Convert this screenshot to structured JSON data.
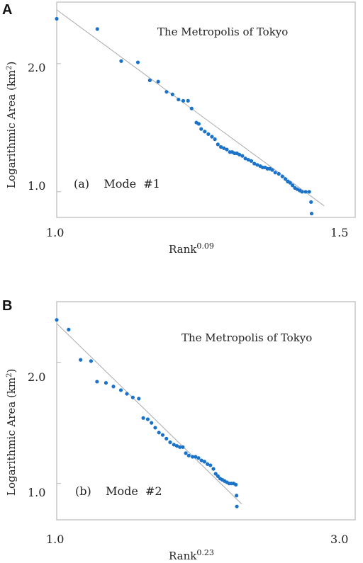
{
  "chart_data": [
    {
      "panel": "A",
      "type": "scatter",
      "title": "The Metropolis of Tokyo",
      "annotation": "(a)    Mode  #1",
      "xlabel": "Rank",
      "xlabel_exp": "0.09",
      "ylabel": "Logarithmic Area (km",
      "ylabel_sup": "2",
      "ylabel_end": ")",
      "xlim": [
        1.0,
        1.5
      ],
      "ylim": [
        0.8,
        2.48
      ],
      "xticks": [
        "1.0",
        "1.5"
      ],
      "xtick_values": [
        1.0,
        1.5
      ],
      "yticks": [
        "1.0",
        "2.0"
      ],
      "ytick_values": [
        1.0,
        2.0
      ],
      "point_color": "#1a73c8",
      "fit_line": [
        [
          1.0,
          2.42
        ],
        [
          1.448,
          0.89
        ]
      ],
      "x": [
        1.0,
        1.068,
        1.108,
        1.136,
        1.156,
        1.17,
        1.184,
        1.194,
        1.204,
        1.212,
        1.22,
        1.226,
        1.234,
        1.238,
        1.242,
        1.248,
        1.254,
        1.26,
        1.265,
        1.27,
        1.275,
        1.28,
        1.285,
        1.29,
        1.294,
        1.298,
        1.302,
        1.306,
        1.311,
        1.316,
        1.321,
        1.326,
        1.331,
        1.336,
        1.341,
        1.345,
        1.349,
        1.353,
        1.357,
        1.361,
        1.366,
        1.372,
        1.378,
        1.383,
        1.387,
        1.391,
        1.395,
        1.399,
        1.403,
        1.407,
        1.411,
        1.417,
        1.423,
        1.426,
        1.427
      ],
      "y": [
        2.35,
        2.27,
        2.02,
        2.01,
        1.87,
        1.86,
        1.78,
        1.76,
        1.72,
        1.71,
        1.71,
        1.65,
        1.54,
        1.53,
        1.49,
        1.47,
        1.45,
        1.43,
        1.41,
        1.37,
        1.35,
        1.34,
        1.33,
        1.31,
        1.31,
        1.3,
        1.3,
        1.29,
        1.28,
        1.26,
        1.25,
        1.24,
        1.22,
        1.21,
        1.2,
        1.19,
        1.19,
        1.18,
        1.18,
        1.17,
        1.15,
        1.14,
        1.12,
        1.1,
        1.08,
        1.07,
        1.05,
        1.03,
        1.02,
        1.01,
        1.0,
        1.0,
        1.0,
        0.92,
        0.83
      ]
    },
    {
      "panel": "B",
      "type": "scatter",
      "title": "The Metropolis of Tokyo",
      "annotation": "(b)    Mode  #2",
      "xlabel": "Rank",
      "xlabel_exp": "0.23",
      "ylabel": "Logarithmic Area (km",
      "ylabel_sup": "2",
      "ylabel_end": ")",
      "xlim": [
        1.0,
        3.0
      ],
      "ylim": [
        0.7,
        2.5
      ],
      "xticks": [
        "1.0",
        "3.0"
      ],
      "xtick_values": [
        1.0,
        3.0
      ],
      "yticks": [
        "1.0",
        "2.0"
      ],
      "ytick_values": [
        1.0,
        2.0
      ],
      "point_color": "#1a73c8",
      "fit_line": [
        [
          1.0,
          2.32
        ],
        [
          2.24,
          0.83
        ]
      ],
      "x": [
        1.0,
        1.08,
        1.16,
        1.23,
        1.27,
        1.33,
        1.38,
        1.43,
        1.47,
        1.51,
        1.55,
        1.58,
        1.61,
        1.635,
        1.66,
        1.685,
        1.71,
        1.735,
        1.76,
        1.785,
        1.805,
        1.825,
        1.845,
        1.865,
        1.885,
        1.91,
        1.93,
        1.95,
        1.97,
        1.99,
        2.01,
        2.03,
        2.05,
        2.065,
        2.08,
        2.095,
        2.11,
        2.125,
        2.14,
        2.155,
        2.17,
        2.185,
        2.2,
        2.205,
        2.207
      ],
      "y": [
        2.35,
        2.27,
        2.02,
        2.01,
        1.84,
        1.83,
        1.8,
        1.77,
        1.74,
        1.71,
        1.7,
        1.54,
        1.53,
        1.5,
        1.46,
        1.42,
        1.4,
        1.37,
        1.34,
        1.32,
        1.31,
        1.3,
        1.3,
        1.25,
        1.23,
        1.22,
        1.22,
        1.21,
        1.19,
        1.18,
        1.16,
        1.15,
        1.12,
        1.08,
        1.06,
        1.04,
        1.03,
        1.02,
        1.01,
        1.0,
        1.0,
        1.0,
        0.99,
        0.9,
        0.81
      ]
    }
  ]
}
